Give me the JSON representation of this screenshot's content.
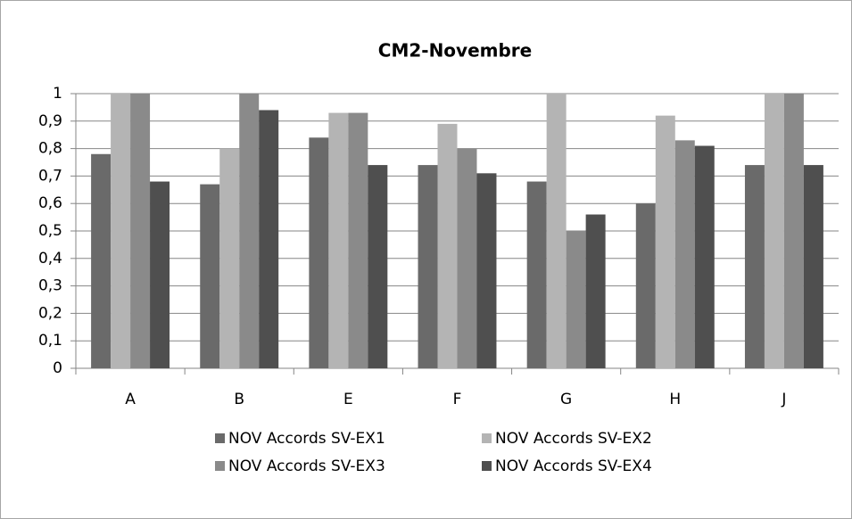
{
  "chart_data": {
    "type": "bar",
    "title": "CM2-Novembre",
    "categories": [
      "A",
      "B",
      "E",
      "F",
      "G",
      "H",
      "J"
    ],
    "series": [
      {
        "name": "NOV Accords SV-EX1",
        "color": "#6a6a6a",
        "values": [
          0.78,
          0.67,
          0.84,
          0.74,
          0.68,
          0.6,
          0.74
        ]
      },
      {
        "name": "NOV Accords SV-EX2",
        "color": "#b4b4b4",
        "values": [
          1,
          0.8,
          0.93,
          0.89,
          1,
          0.92,
          1
        ]
      },
      {
        "name": "NOV Accords SV-EX3",
        "color": "#8a8a8a",
        "values": [
          1,
          1,
          0.93,
          0.8,
          0.5,
          0.83,
          1
        ]
      },
      {
        "name": "NOV Accords SV-EX4",
        "color": "#4f4f4f",
        "values": [
          0.68,
          0.94,
          0.74,
          0.71,
          0.56,
          0.81,
          0.74
        ]
      }
    ],
    "ylim": [
      0,
      1
    ],
    "yticks": [
      0,
      {
        "value": 0.1,
        "label": "0,1"
      },
      {
        "value": 0.2,
        "label": "0,2"
      },
      {
        "value": 0.3,
        "label": "0,3"
      },
      {
        "value": 0.4,
        "label": "0,4"
      },
      {
        "value": 0.5,
        "label": "0,5"
      },
      {
        "value": 0.6,
        "label": "0,6"
      },
      {
        "value": 0.7,
        "label": "0,7"
      },
      {
        "value": 0.8,
        "label": "0,8"
      },
      {
        "value": 0.9,
        "label": "0,9"
      },
      1
    ],
    "grid": true,
    "legend": "bottom"
  }
}
